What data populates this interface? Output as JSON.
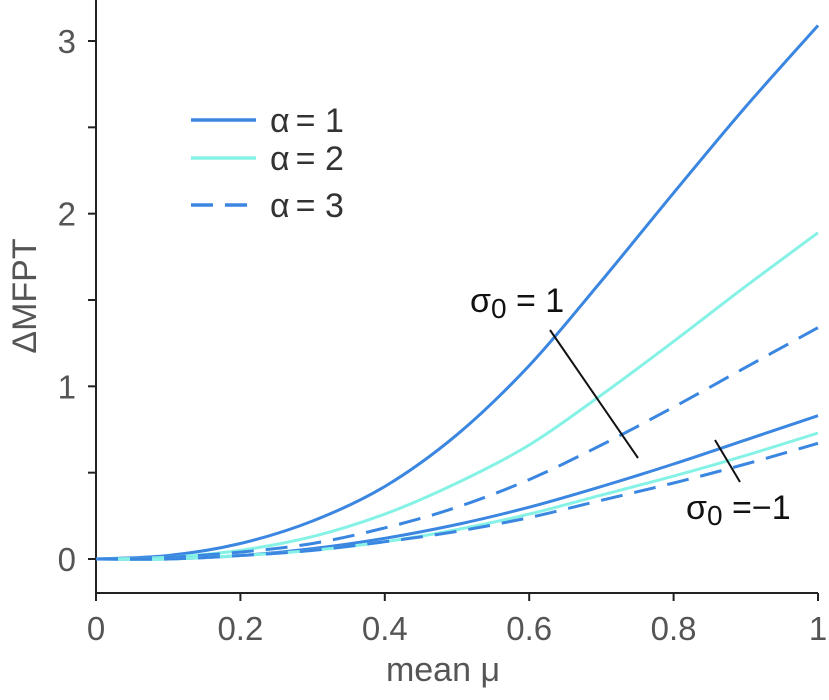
{
  "chart_data": {
    "type": "line",
    "xlabel": "mean μ",
    "ylabel": "ΔMFPT",
    "xlim": [
      0,
      1
    ],
    "ylim": [
      -0.15,
      3.25
    ],
    "xticks": [
      0,
      0.2,
      0.4,
      0.6,
      0.8,
      1
    ],
    "xtick_labels": [
      "0",
      "0.2",
      "0.4",
      "0.6",
      "0.8",
      "1"
    ],
    "yticks": [
      0,
      1,
      2,
      3
    ],
    "ytick_labels": [
      "0",
      "1",
      "2",
      "3"
    ],
    "legend": [
      {
        "alpha_sym": "α",
        "value": "= 1",
        "color": "#3a86e0",
        "dash": "solid"
      },
      {
        "alpha_sym": "α",
        "value": "= 2",
        "color": "#86f2e6",
        "dash": "solid"
      },
      {
        "alpha_sym": "α",
        "value": "= 3",
        "color": "#3a86e0",
        "dash": "dashed"
      }
    ],
    "annotations": [
      {
        "text_sym": "σ",
        "text_sub": "0",
        "text_rest": " = 1"
      },
      {
        "text_sym": "σ",
        "text_sub": "0",
        "text_rest": " =−1"
      }
    ],
    "x": [
      0.0,
      0.1,
      0.2,
      0.3,
      0.4,
      0.5,
      0.6,
      0.7,
      0.8,
      0.9,
      1.0
    ],
    "series": [
      {
        "name": "α = 1, σ0 = 1",
        "color": "#3a86e0",
        "dash": "solid",
        "values": [
          0.0,
          0.02,
          0.09,
          0.22,
          0.42,
          0.72,
          1.12,
          1.61,
          2.12,
          2.62,
          3.09
        ]
      },
      {
        "name": "α = 2, σ0 = 1",
        "color": "#86f2e6",
        "dash": "solid",
        "values": [
          0.0,
          0.01,
          0.05,
          0.13,
          0.26,
          0.44,
          0.66,
          0.95,
          1.26,
          1.58,
          1.89
        ]
      },
      {
        "name": "α = 3, σ0 = 1",
        "color": "#3a86e0",
        "dash": "dashed",
        "values": [
          0.0,
          0.01,
          0.04,
          0.09,
          0.18,
          0.3,
          0.46,
          0.66,
          0.88,
          1.11,
          1.34
        ]
      },
      {
        "name": "α = 1, σ0 = −1",
        "color": "#3a86e0",
        "dash": "solid",
        "values": [
          0.0,
          0.0,
          0.02,
          0.06,
          0.12,
          0.2,
          0.3,
          0.42,
          0.55,
          0.69,
          0.83
        ]
      },
      {
        "name": "α = 2, σ0 = −1",
        "color": "#86f2e6",
        "dash": "solid",
        "values": [
          0.0,
          0.0,
          0.02,
          0.05,
          0.1,
          0.17,
          0.26,
          0.37,
          0.48,
          0.6,
          0.73
        ]
      },
      {
        "name": "α = 3, σ0 = −1",
        "color": "#3a86e0",
        "dash": "dashed",
        "values": [
          0.0,
          0.0,
          0.02,
          0.05,
          0.1,
          0.16,
          0.24,
          0.34,
          0.44,
          0.55,
          0.67
        ]
      }
    ]
  }
}
